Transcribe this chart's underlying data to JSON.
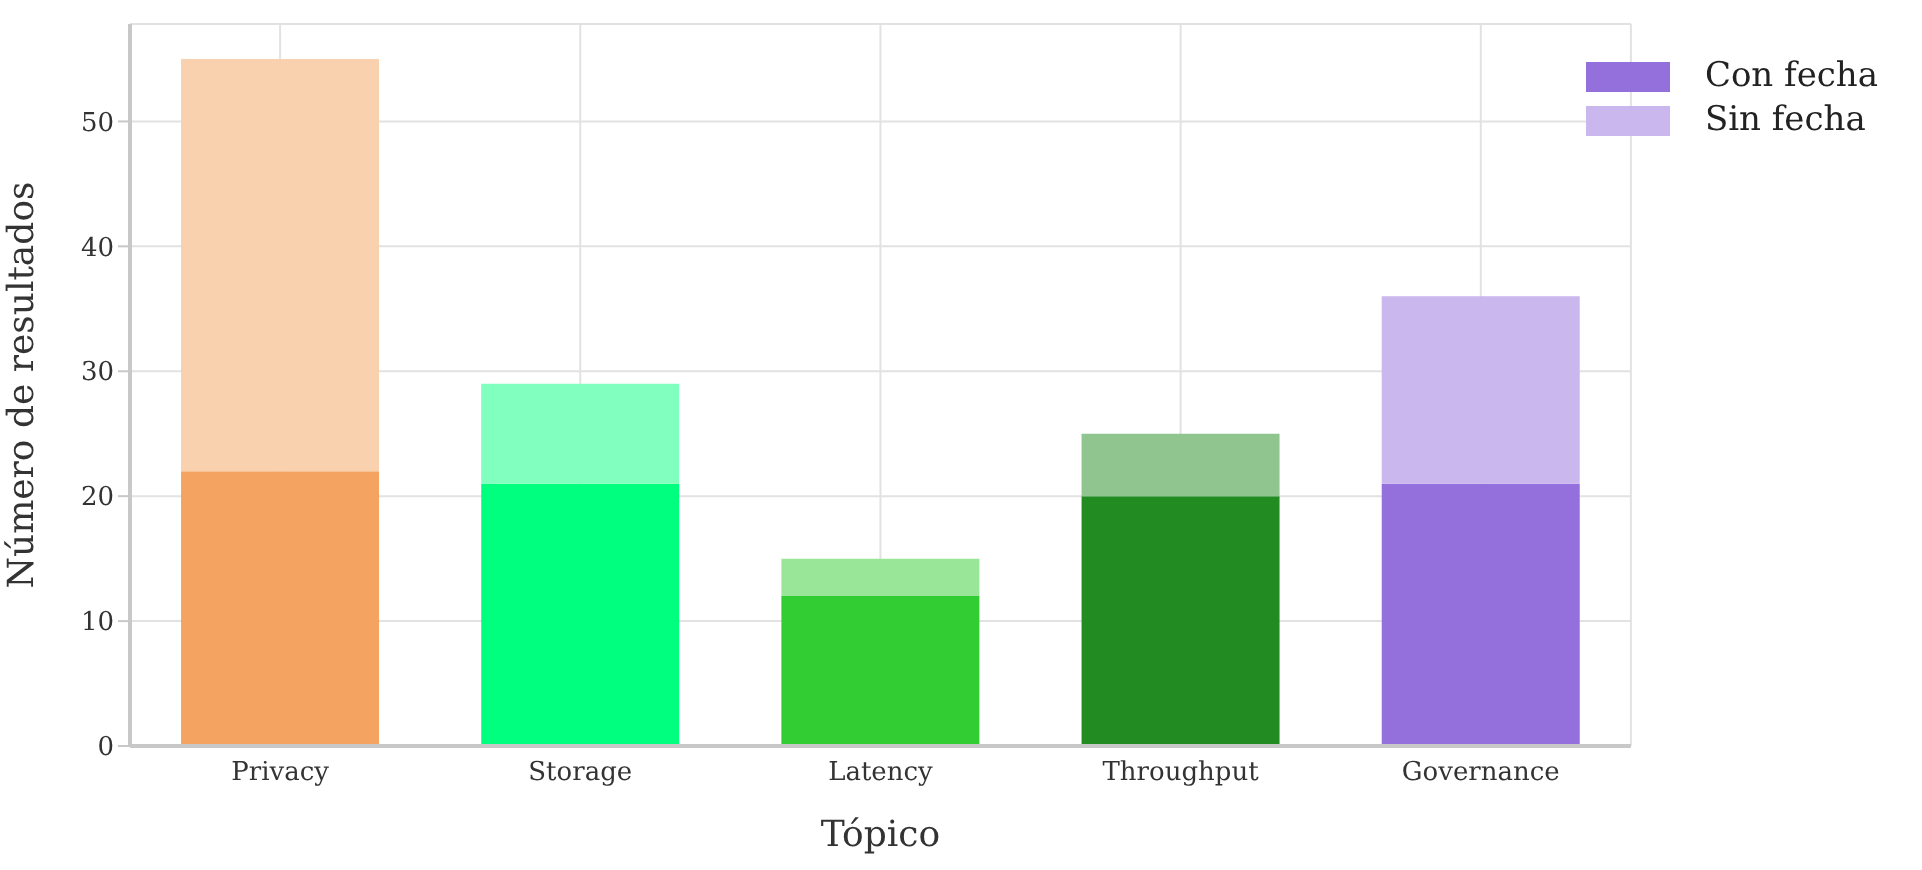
{
  "chart_data": {
    "type": "bar",
    "stacked": true,
    "xlabel": "Tópico",
    "ylabel": "Número de resultados",
    "categories": [
      "Privacy",
      "Storage",
      "Latency",
      "Throughput",
      "Governance"
    ],
    "series": [
      {
        "name": "Con fecha",
        "color": "#9370db",
        "colors": [
          "#f4a460",
          "#00ff7f",
          "#32cd32",
          "#228b22",
          "#9370db"
        ],
        "values": [
          22,
          21,
          12,
          20,
          21
        ]
      },
      {
        "name": "Sin fecha",
        "color": "#c9b7ed",
        "colors": [
          "#f9d1af",
          "#80ffbf",
          "#99e699",
          "#90c590",
          "#c9b7ed"
        ],
        "values": [
          33,
          8,
          3,
          5,
          15
        ]
      }
    ],
    "ylim": [
      0,
      57.8
    ],
    "yticks": [
      0,
      10,
      20,
      30,
      40,
      50
    ],
    "grid": true,
    "legend": "top right"
  }
}
